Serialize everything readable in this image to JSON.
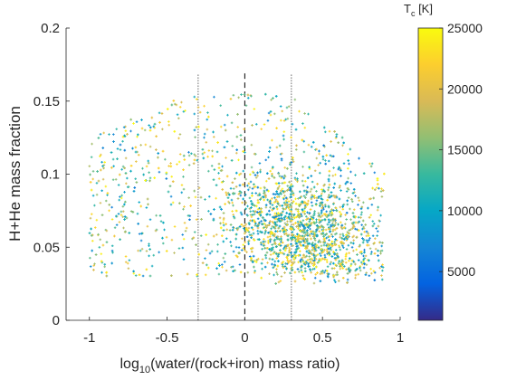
{
  "chart_data": {
    "type": "scatter",
    "title": "",
    "xlabel": {
      "prefix": "log",
      "sub": "10",
      "rest": "(water/(rock+iron) mass ratio)"
    },
    "ylabel": "H+He mass fraction",
    "xlim": [
      -1.15,
      1.0
    ],
    "ylim": [
      0,
      0.2
    ],
    "xticks": [
      -1,
      -0.5,
      0,
      0.5,
      1
    ],
    "xtick_labels": [
      "-1",
      "-0.5",
      "0",
      "0.5",
      "1"
    ],
    "yticks": [
      0,
      0.05,
      0.1,
      0.15,
      0.2
    ],
    "ytick_labels": [
      "0",
      "0.05",
      "0.1",
      "0.15",
      "0.2"
    ],
    "grid": false,
    "reference_lines": [
      {
        "x": -0.3,
        "style": "dotted",
        "color": "#000000"
      },
      {
        "x": 0,
        "style": "dashed",
        "color": "#000000"
      },
      {
        "x": 0.3,
        "style": "dotted",
        "color": "#000000"
      }
    ],
    "marker": "+",
    "point_count": 3000,
    "point_distribution": {
      "x_range_observed": [
        -1.0,
        0.9
      ],
      "y_range_observed": [
        0.025,
        0.168
      ],
      "dense_region": {
        "x": [
          0.0,
          0.8
        ],
        "y": [
          0.03,
          0.1
        ]
      }
    },
    "color_variable": "Tc",
    "colorbar": {
      "label": {
        "main": "T",
        "sub": "c",
        "rest": " [K]"
      },
      "range": [
        1000,
        25000
      ],
      "ticks": [
        5000,
        10000,
        15000,
        20000,
        25000
      ],
      "tick_labels": [
        "5000",
        "10000",
        "15000",
        "20000",
        "25000"
      ],
      "colormap": "parula",
      "colors": [
        "#352a87",
        "#0363e1",
        "#1485d4",
        "#06a7c6",
        "#38b99e",
        "#92bf73",
        "#d9ba56",
        "#fcce2e",
        "#f9fb0e"
      ]
    }
  }
}
